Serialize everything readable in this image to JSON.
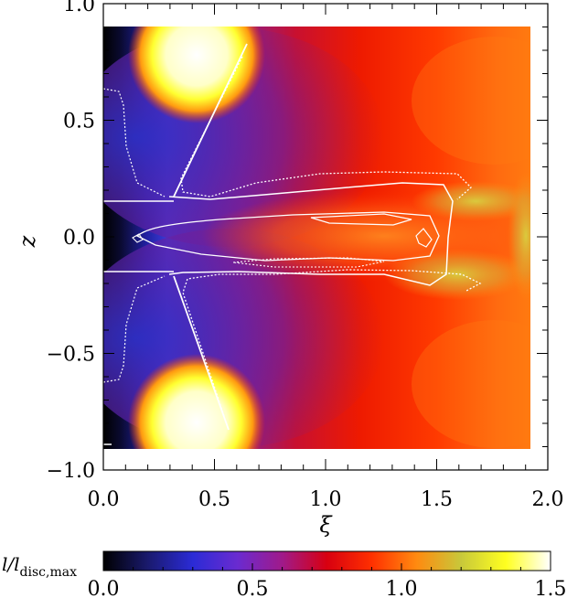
{
  "chart_data": {
    "type": "heatmap",
    "title": "",
    "xlabel": "ξ",
    "ylabel": "z",
    "xlim": [
      0.0,
      2.0
    ],
    "ylim": [
      -1.0,
      1.0
    ],
    "x_ticks": [
      "0.0",
      "0.5",
      "1.0",
      "1.5",
      "2.0"
    ],
    "y_ticks": [
      "1.0",
      "0.5",
      "0.0",
      "−0.5",
      "−1.0"
    ],
    "data_extent": {
      "x": [
        0.0,
        1.9
      ],
      "z": [
        -0.92,
        0.92
      ]
    },
    "colorbar": {
      "label_main": "l/l",
      "label_sub": "disc,max",
      "range": [
        0.0,
        1.5
      ],
      "ticks": [
        "0.0",
        "0.5",
        "1.0",
        "1.5"
      ],
      "colors": [
        "#000000",
        "#1a1a6e",
        "#2b2bd6",
        "#6a2bd0",
        "#a01a8a",
        "#d80010",
        "#ff3000",
        "#ff8a10",
        "#c8c83a",
        "#ffff20",
        "#ffffff"
      ]
    },
    "annotations": {
      "disc_boundary_z": [
        0.15,
        -0.15
      ],
      "grid": false
    }
  }
}
